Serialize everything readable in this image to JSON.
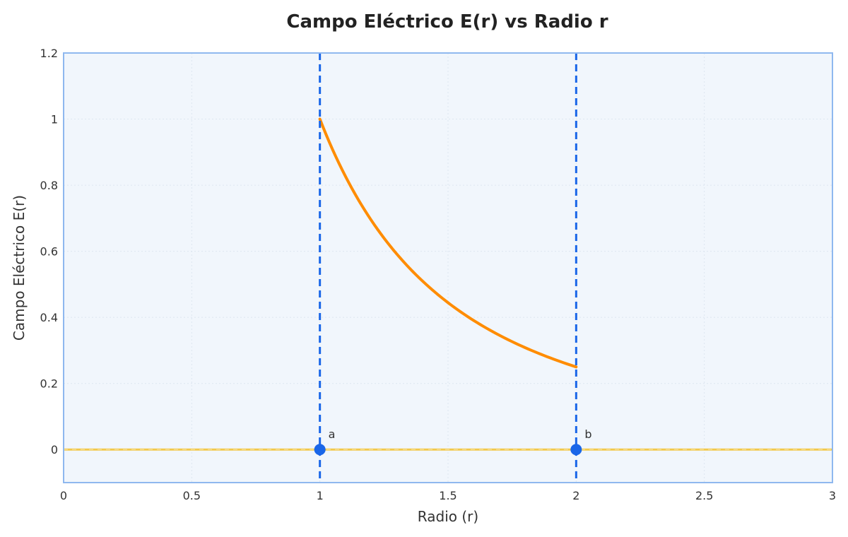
{
  "chart_data": {
    "type": "line",
    "title": "Campo Eléctrico E(r) vs Radio r",
    "xlabel": "Radio (r)",
    "ylabel": "Campo Eléctrico E(r)",
    "xlim": [
      0,
      3
    ],
    "ylim": [
      -0.1,
      1.2
    ],
    "xticks": [
      "0",
      "0.5",
      "1",
      "1.5",
      "2",
      "2.5",
      "3"
    ],
    "yticks": [
      "0",
      "0.2",
      "0.4",
      "0.6",
      "0.8",
      "1",
      "1.2"
    ],
    "grid": true,
    "series": [
      {
        "color": "#ff8c00",
        "x": [
          1.0,
          1.1,
          1.2,
          1.3,
          1.4,
          1.5,
          1.6,
          1.7,
          1.8,
          1.9,
          2.0
        ],
        "y": [
          1.0,
          0.826,
          0.694,
          0.592,
          0.51,
          0.444,
          0.391,
          0.346,
          0.309,
          0.277,
          0.25
        ]
      },
      {
        "color": "#f2c94c",
        "x": [
          0,
          3
        ],
        "y": [
          0,
          0
        ]
      }
    ],
    "vlines": [
      {
        "x": 1,
        "color": "#1a66e8"
      },
      {
        "x": 2,
        "color": "#1a66e8"
      }
    ],
    "points": [
      {
        "x": 1,
        "y": 0,
        "label": "a",
        "color": "#1a66e8"
      },
      {
        "x": 2,
        "y": 0,
        "label": "b",
        "color": "#1a66e8"
      }
    ],
    "colors": {
      "plot_background": "#f1f6fc",
      "plot_border": "#8fb8ef",
      "grid": "#dde6f0"
    }
  }
}
